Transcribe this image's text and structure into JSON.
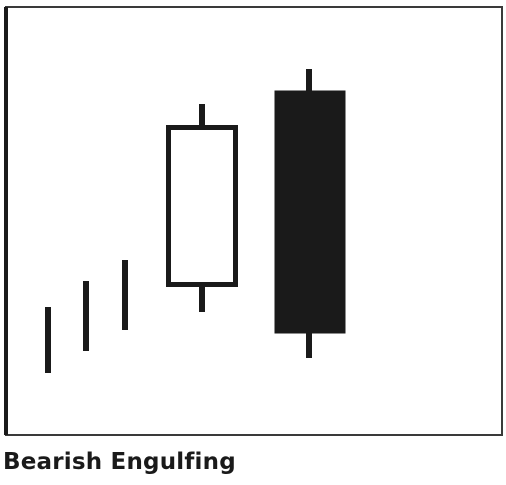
{
  "caption": "Bearish Engulfing",
  "colors": {
    "frame": "#3a3a3a",
    "ink": "#1a1a1a",
    "paper": "#ffffff"
  },
  "pattern": {
    "name": "Bearish Engulfing",
    "trend": "up",
    "bullish_candle_count": 1,
    "bearish_candle_count": 1
  }
}
